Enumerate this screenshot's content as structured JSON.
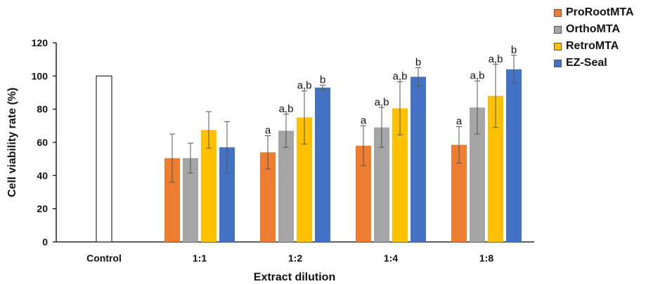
{
  "chart_data": {
    "type": "bar",
    "xlabel": "Extract dilution",
    "ylabel": "Cell viability rate (%)",
    "ylim": [
      0,
      120
    ],
    "yticks": [
      0,
      20,
      40,
      60,
      80,
      100,
      120
    ],
    "grid": false,
    "legend_position": "top-right",
    "control": {
      "category": "Control",
      "value": 100,
      "color": "#ffffff"
    },
    "categories": [
      "1:1",
      "1:2",
      "1:4",
      "1:8"
    ],
    "series": [
      {
        "name": "ProRootMTA",
        "color": "#ED7D31",
        "values": [
          50.5,
          54,
          58,
          58.5
        ],
        "errors": [
          14.5,
          10,
          12,
          11
        ],
        "labels": [
          "",
          "a",
          "a",
          "a"
        ]
      },
      {
        "name": "OrthoMTA",
        "color": "#A5A5A5",
        "values": [
          50.5,
          67,
          69,
          81
        ],
        "errors": [
          9,
          10,
          12,
          16
        ],
        "labels": [
          "",
          "a,b",
          "a,b",
          "a,b"
        ]
      },
      {
        "name": "RetroMTA",
        "color": "#FFC000",
        "values": [
          67.5,
          75,
          80.5,
          88
        ],
        "errors": [
          11,
          16,
          16,
          19
        ],
        "labels": [
          "",
          "a,b",
          "a,b",
          "a,b"
        ]
      },
      {
        "name": "EZ-Seal",
        "color": "#4472C4",
        "values": [
          57,
          93,
          99.5,
          104
        ],
        "errors": [
          15.5,
          1.5,
          5.5,
          8.5
        ],
        "labels": [
          "",
          "b",
          "b",
          "b"
        ]
      }
    ]
  }
}
